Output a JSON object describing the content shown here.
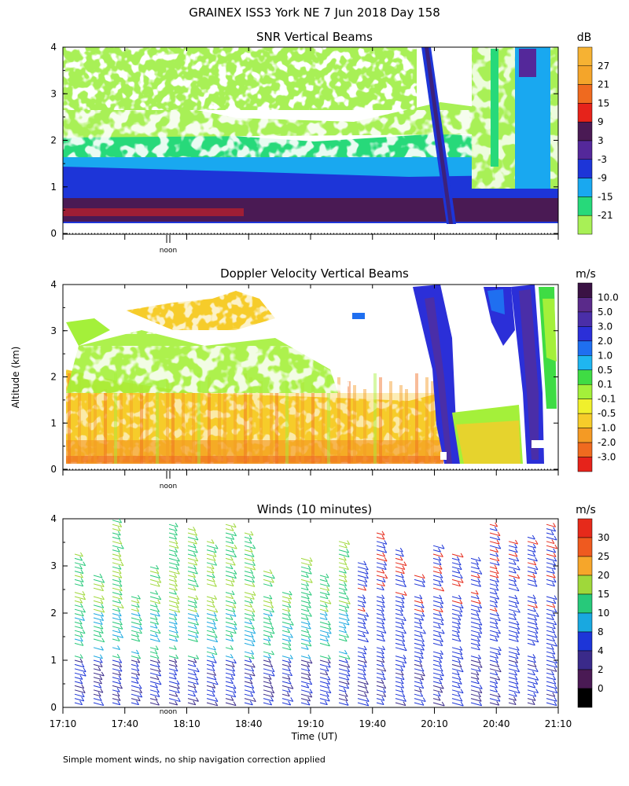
{
  "header": {
    "title": "GRAINEX ISS3 York NE   7 Jun 2018 Day 158"
  },
  "footer": {
    "note": "Simple moment winds, no ship navigation correction applied"
  },
  "shared_axes": {
    "ylabel": "Altitude (km)",
    "xlabel": "Time (UT)",
    "noon_marker": "noon"
  },
  "chart_data": [
    {
      "type": "heatmap",
      "title": "SNR Vertical Beams",
      "units": "dB",
      "x": {
        "tick_labels": [
          "17:10",
          "17:40",
          "18:10",
          "18:40",
          "19:10",
          "19:40",
          "20:10",
          "20:40",
          "21:10"
        ],
        "range": [
          "17:10",
          "21:10"
        ]
      },
      "y": {
        "tick_labels": [
          "0",
          "1",
          "2",
          "3",
          "4"
        ],
        "range": [
          0,
          4
        ]
      },
      "colorbar": {
        "labels": [
          "27",
          "21",
          "15",
          "9",
          "3",
          "-3",
          "-9",
          "-15",
          "-21"
        ],
        "colors": [
          "#f6b233",
          "#f4a52a",
          "#ef6a1f",
          "#e6231b",
          "#4a1a54",
          "#54289a",
          "#1d35d8",
          "#19a8f0",
          "#27d97a",
          "#a8f056"
        ]
      }
    },
    {
      "type": "heatmap",
      "title": "Doppler Velocity Vertical Beams",
      "units": "m/s",
      "x": {
        "range": [
          "17:10",
          "21:10"
        ]
      },
      "y": {
        "tick_labels": [
          "0",
          "1",
          "2",
          "3",
          "4"
        ],
        "range": [
          0,
          4
        ]
      },
      "colorbar": {
        "labels": [
          "10.0",
          "5.0",
          "3.0",
          "2.0",
          "1.0",
          "0.5",
          "0.1",
          "-0.1",
          "-0.5",
          "-1.0",
          "-2.0",
          "-3.0"
        ],
        "colors": [
          "#3a1244",
          "#5a2a8a",
          "#4a2ea8",
          "#2b2fd8",
          "#1f6ff0",
          "#1fb6f0",
          "#3fdc44",
          "#a4f03a",
          "#f0f02c",
          "#f6cc2a",
          "#f49a24",
          "#ef6a1f",
          "#e6231b"
        ]
      }
    },
    {
      "type": "wind_barbs",
      "title": "Winds (10 minutes)",
      "units": "m/s",
      "x": {
        "tick_labels": [
          "17:10",
          "17:40",
          "18:10",
          "18:40",
          "19:10",
          "19:40",
          "20:10",
          "20:40",
          "21:10"
        ],
        "range": [
          "17:10",
          "21:10"
        ]
      },
      "y": {
        "tick_labels": [
          "0",
          "1",
          "2",
          "3",
          "4"
        ],
        "range": [
          0,
          4
        ]
      },
      "colorbar": {
        "labels": [
          "30",
          "25",
          "20",
          "15",
          "10",
          "8",
          "4",
          "2",
          "0"
        ],
        "colors": [
          "#e62a1b",
          "#ef5a1f",
          "#f6a62a",
          "#9fd83a",
          "#27c97a",
          "#19a8e0",
          "#1d35d8",
          "#3a2a8a",
          "#4a1a54",
          "#000000"
        ]
      }
    }
  ]
}
